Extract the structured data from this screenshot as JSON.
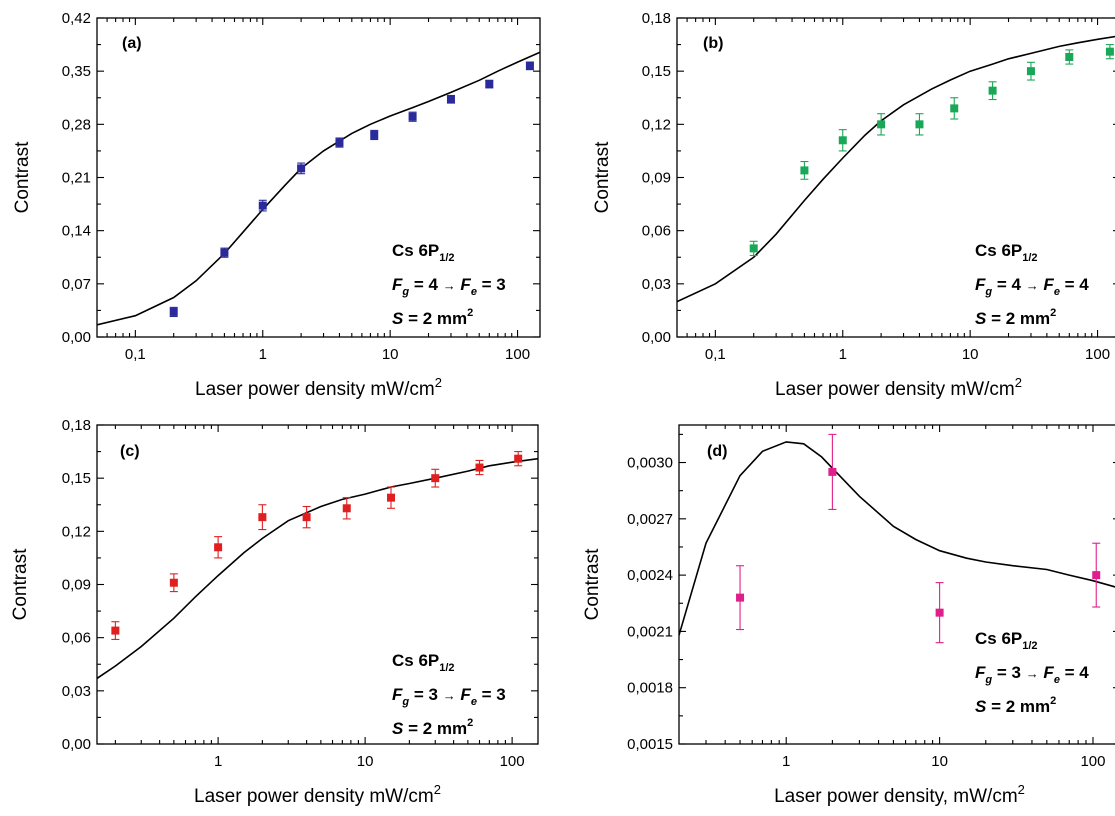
{
  "chart_data": [
    {
      "type": "scatter",
      "panel_label": "(a)",
      "xlabel": "Laser power density mW/cm",
      "xlabel_sup": "2",
      "ylabel": "Contrast",
      "xscale": "log",
      "xlim": [
        0.05,
        150
      ],
      "ylim": [
        0,
        0.42
      ],
      "xticks": [
        0.1,
        1,
        10,
        100
      ],
      "xticklabels": [
        "0,1",
        "1",
        "10",
        "100"
      ],
      "yticks": [
        0,
        0.07,
        0.14,
        0.21,
        0.28,
        0.35,
        0.42
      ],
      "yticklabels": [
        "0,00",
        "0,07",
        "0,14",
        "0,21",
        "0,28",
        "0,35",
        "0,42"
      ],
      "marker_color": "#2a2a9a",
      "series": [
        {
          "x": [
            0.2,
            0.5,
            1,
            2,
            4,
            7.5,
            15,
            30,
            60,
            125
          ],
          "y": [
            0.033,
            0.111,
            0.173,
            0.222,
            0.256,
            0.266,
            0.29,
            0.313,
            0.333,
            0.357
          ],
          "err": [
            0.006,
            0.006,
            0.007,
            0.007,
            0.006,
            0.006,
            0.006,
            0.005,
            0.005,
            0.005
          ]
        }
      ],
      "fit": {
        "x": [
          0.05,
          0.1,
          0.2,
          0.3,
          0.5,
          0.7,
          1,
          1.5,
          2,
          3,
          5,
          7,
          10,
          15,
          20,
          30,
          50,
          70,
          100,
          150
        ],
        "y": [
          0.016,
          0.028,
          0.052,
          0.074,
          0.11,
          0.138,
          0.168,
          0.2,
          0.222,
          0.245,
          0.268,
          0.28,
          0.291,
          0.302,
          0.31,
          0.322,
          0.338,
          0.35,
          0.362,
          0.375
        ]
      },
      "annotation": {
        "line1": "Cs 6P",
        "line1_sub": "1/2",
        "fg": "F",
        "fg_sub": "g",
        "fg_eq": " = 4 ",
        "arrow": "→",
        "fe": "F",
        "fe_sub": "e",
        "fe_eq": " = 3",
        "s": "S",
        "s_eq": " = 2 mm",
        "s_sup": "2"
      }
    },
    {
      "type": "scatter",
      "panel_label": "(b)",
      "xlabel": "Laser power density mW/cm",
      "xlabel_sup": "2",
      "ylabel": "Contrast",
      "xscale": "log",
      "xlim": [
        0.05,
        150
      ],
      "ylim": [
        0,
        0.18
      ],
      "xticks": [
        0.1,
        1,
        10,
        100
      ],
      "xticklabels": [
        "0,1",
        "1",
        "10",
        "100"
      ],
      "yticks": [
        0,
        0.03,
        0.06,
        0.09,
        0.12,
        0.15,
        0.18
      ],
      "yticklabels": [
        "0,00",
        "0,03",
        "0,06",
        "0,09",
        "0,12",
        "0,15",
        "0,18"
      ],
      "marker_color": "#1aa858",
      "series": [
        {
          "x": [
            0.2,
            0.5,
            1,
            2,
            4,
            7.5,
            15,
            30,
            60,
            125
          ],
          "y": [
            0.05,
            0.094,
            0.111,
            0.12,
            0.12,
            0.129,
            0.139,
            0.15,
            0.158,
            0.161
          ],
          "err": [
            0.004,
            0.005,
            0.006,
            0.006,
            0.006,
            0.006,
            0.005,
            0.005,
            0.004,
            0.004
          ]
        }
      ],
      "fit": {
        "x": [
          0.05,
          0.1,
          0.2,
          0.3,
          0.5,
          0.7,
          1,
          1.5,
          2,
          3,
          5,
          7,
          10,
          15,
          20,
          30,
          50,
          70,
          100,
          150
        ],
        "y": [
          0.02,
          0.03,
          0.045,
          0.058,
          0.077,
          0.089,
          0.101,
          0.114,
          0.122,
          0.131,
          0.14,
          0.145,
          0.15,
          0.154,
          0.157,
          0.16,
          0.164,
          0.166,
          0.168,
          0.17
        ]
      },
      "annotation": {
        "line1": "Cs 6P",
        "line1_sub": "1/2",
        "fg": "F",
        "fg_sub": "g",
        "fg_eq": " = 4 ",
        "arrow": "→",
        "fe": "F",
        "fe_sub": "e",
        "fe_eq": " = 4",
        "s": "S",
        "s_eq": " = 2 mm",
        "s_sup": "2"
      }
    },
    {
      "type": "scatter",
      "panel_label": "(c)",
      "xlabel": "Laser power density mW/cm",
      "xlabel_sup": "2",
      "ylabel": "Contrast",
      "xscale": "log",
      "xlim": [
        0.15,
        150
      ],
      "ylim": [
        0,
        0.18
      ],
      "xticks": [
        1,
        10,
        100
      ],
      "xticklabels": [
        "1",
        "10",
        "100"
      ],
      "yticks": [
        0,
        0.03,
        0.06,
        0.09,
        0.12,
        0.15,
        0.18
      ],
      "yticklabels": [
        "0,00",
        "0,03",
        "0,06",
        "0,09",
        "0,12",
        "0,15",
        "0,18"
      ],
      "marker_color": "#e02020",
      "series": [
        {
          "x": [
            0.2,
            0.5,
            1,
            2,
            4,
            7.5,
            15,
            30,
            60,
            110
          ],
          "y": [
            0.064,
            0.091,
            0.111,
            0.128,
            0.128,
            0.133,
            0.139,
            0.15,
            0.156,
            0.161
          ],
          "err": [
            0.005,
            0.005,
            0.006,
            0.007,
            0.006,
            0.006,
            0.006,
            0.005,
            0.004,
            0.004
          ]
        }
      ],
      "fit": {
        "x": [
          0.15,
          0.2,
          0.3,
          0.5,
          0.7,
          1,
          1.5,
          2,
          3,
          5,
          7,
          10,
          15,
          20,
          30,
          50,
          70,
          100,
          150
        ],
        "y": [
          0.037,
          0.044,
          0.055,
          0.071,
          0.083,
          0.095,
          0.108,
          0.116,
          0.126,
          0.134,
          0.138,
          0.141,
          0.145,
          0.147,
          0.15,
          0.154,
          0.157,
          0.159,
          0.161
        ]
      },
      "annotation": {
        "line1": "Cs 6P",
        "line1_sub": "1/2",
        "fg": "F",
        "fg_sub": "g",
        "fg_eq": " = 3 ",
        "arrow": "→",
        "fe": "F",
        "fe_sub": "e",
        "fe_eq": " = 3",
        "s": "S",
        "s_eq": " = 2 mm",
        "s_sup": "2"
      }
    },
    {
      "type": "scatter",
      "panel_label": "(d)",
      "xlabel": "Laser power density, mW/cm",
      "xlabel_sup": "2",
      "ylabel": "Contrast",
      "xscale": "log",
      "xlim": [
        0.2,
        150
      ],
      "ylim": [
        0.0015,
        0.0032
      ],
      "xticks": [
        1,
        10,
        100
      ],
      "xticklabels": [
        "1",
        "10",
        "100"
      ],
      "yticks": [
        0.0015,
        0.0018,
        0.0021,
        0.0024,
        0.0027,
        0.003
      ],
      "yticklabels": [
        "0,0015",
        "0,0018",
        "0,0021",
        "0,0024",
        "0,0027",
        "0,0030"
      ],
      "marker_color": "#e0208a",
      "series": [
        {
          "x": [
            0.5,
            2,
            10,
            105
          ],
          "y": [
            0.00228,
            0.00295,
            0.0022,
            0.0024
          ],
          "err": [
            0.00017,
            0.0002,
            0.00016,
            0.00017
          ]
        }
      ],
      "fit": {
        "x": [
          0.2,
          0.3,
          0.5,
          0.7,
          1,
          1.3,
          1.7,
          2,
          3,
          5,
          7,
          10,
          15,
          20,
          30,
          50,
          70,
          100,
          150
        ],
        "y": [
          0.00208,
          0.00257,
          0.00293,
          0.00306,
          0.00311,
          0.0031,
          0.00303,
          0.00297,
          0.00282,
          0.00266,
          0.00259,
          0.00253,
          0.00249,
          0.00247,
          0.00245,
          0.00243,
          0.0024,
          0.00237,
          0.00233
        ]
      },
      "annotation": {
        "line1": "Cs  6P",
        "line1_sub": "1/2",
        "fg": "F",
        "fg_sub": "g",
        "fg_eq": " = 3 ",
        "arrow": "→",
        "fe": "F",
        "fe_sub": "e",
        "fe_eq": " = 4",
        "s": "S",
        "s_eq": " = 2 mm",
        "s_sup": "2"
      }
    }
  ]
}
